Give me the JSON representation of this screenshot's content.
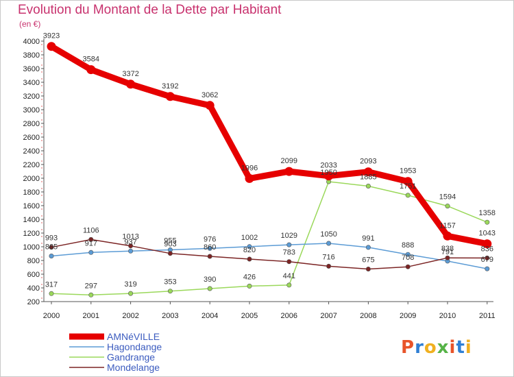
{
  "title": "Evolution du Montant de la Dette par Habitant",
  "unit": "(en €)",
  "logo": {
    "letters": [
      "P",
      "r",
      "o",
      "x",
      "i",
      "t",
      "i"
    ],
    "colors": [
      "#e8542a",
      "#2f7fd4",
      "#f0b020",
      "#56b347",
      "#e8542a",
      "#2f7fd4",
      "#f0b020"
    ]
  },
  "chart_data": {
    "type": "line",
    "x": [
      "2000",
      "2001",
      "2002",
      "2003",
      "2004",
      "2005",
      "2006",
      "2007",
      "2008",
      "2009",
      "2010",
      "2011"
    ],
    "ylim": [
      200,
      4000
    ],
    "yticks": [
      200,
      400,
      600,
      800,
      1000,
      1200,
      1400,
      1600,
      1800,
      2000,
      2200,
      2400,
      2600,
      2800,
      3000,
      3200,
      3400,
      3600,
      3800,
      4000
    ],
    "grid": false,
    "legend": "bottom-left",
    "series": [
      {
        "name": "AMNéVILLE",
        "color": "#e60000",
        "values": [
          3923,
          3584,
          3372,
          3192,
          3062,
          1996,
          2099,
          2033,
          2093,
          1953,
          1157,
          1043
        ],
        "labels": [
          "3923",
          "3584",
          "3372",
          "3192",
          "3062",
          "1996",
          "2099",
          "2033",
          "2093",
          "1953",
          "1157",
          "1043"
        ]
      },
      {
        "name": "Hagondange",
        "color": "#5b9bd5",
        "values": [
          865,
          917,
          937,
          955,
          976,
          1002,
          1029,
          1050,
          991,
          888,
          791,
          679
        ],
        "labels": [
          "865",
          "917",
          "937",
          "955",
          "976",
          "1002",
          "1029",
          "1050",
          "991",
          "888",
          "791",
          "679"
        ]
      },
      {
        "name": "Gandrange",
        "color": "#9ad85a",
        "values": [
          317,
          297,
          319,
          353,
          390,
          426,
          441,
          1950,
          1885,
          1751,
          1594,
          1358
        ],
        "labels": [
          "317",
          "297",
          "319",
          "353",
          "390",
          "426",
          "441",
          "1950",
          "1885",
          "1751",
          "1594",
          "1358"
        ]
      },
      {
        "name": "Mondelange",
        "color": "#7b2424",
        "values": [
          993,
          1106,
          1013,
          903,
          860,
          820,
          783,
          716,
          675,
          708,
          838,
          836
        ],
        "labels": [
          "993",
          "1106",
          "1013",
          "903",
          "860",
          "820",
          "783",
          "716",
          "675",
          "708",
          "838",
          "836"
        ]
      }
    ]
  }
}
